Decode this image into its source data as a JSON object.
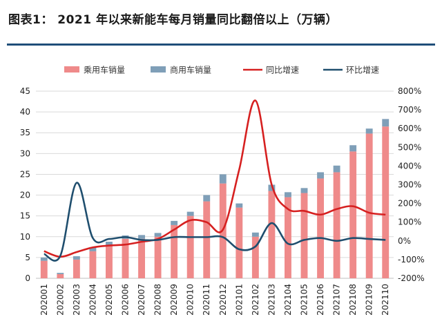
{
  "title": "图表1：  2021 年以来新能车每月销量同比翻倍以上（万辆）",
  "colors": {
    "passenger": "#ef8a8a",
    "commercial": "#7f9fb8",
    "yoy": "#d62020",
    "mom": "#1f4e6e",
    "title_rule": "#1f4e79"
  },
  "chart_data": {
    "type": "bar",
    "categories": [
      "202001",
      "202002",
      "202003",
      "202004",
      "202005",
      "202006",
      "202007",
      "202008",
      "202009",
      "202010",
      "202011",
      "202012",
      "202101",
      "202102",
      "202103",
      "202104",
      "202105",
      "202106",
      "202107",
      "202108",
      "202109",
      "202110"
    ],
    "series": [
      {
        "name": "乘用车销量",
        "type": "bar",
        "axis": "left",
        "values": [
          4.2,
          1.0,
          4.5,
          6.5,
          8.0,
          9.5,
          9.5,
          10.0,
          12.8,
          15.0,
          18.5,
          22.8,
          17.0,
          10.0,
          21.0,
          19.5,
          20.5,
          24.0,
          25.5,
          30.5,
          34.8,
          36.5
        ]
      },
      {
        "name": "商用车销量",
        "type": "bar",
        "axis": "left",
        "values": [
          0.8,
          0.3,
          0.8,
          1.0,
          0.8,
          0.8,
          0.9,
          0.9,
          1.0,
          1.0,
          1.5,
          2.2,
          1.0,
          1.0,
          1.5,
          1.2,
          1.2,
          1.5,
          1.6,
          1.5,
          1.2,
          1.8
        ]
      },
      {
        "name": "同比增速",
        "type": "line",
        "axis": "right",
        "values": [
          -55,
          -85,
          -60,
          -35,
          -25,
          -20,
          -5,
          10,
          60,
          110,
          100,
          60,
          380,
          750,
          300,
          170,
          160,
          140,
          170,
          185,
          150,
          140
        ]
      },
      {
        "name": "环比增速",
        "type": "line",
        "axis": "right",
        "values": [
          -70,
          -80,
          310,
          15,
          10,
          20,
          5,
          5,
          20,
          20,
          20,
          20,
          -45,
          -30,
          95,
          -15,
          5,
          15,
          0,
          15,
          10,
          5
        ]
      }
    ],
    "y_left": {
      "min": 0,
      "max": 45,
      "step": 5,
      "ticks": [
        "0",
        "5",
        "10",
        "15",
        "20",
        "25",
        "30",
        "35",
        "40",
        "45"
      ]
    },
    "y_right": {
      "min": -200,
      "max": 800,
      "step": 100,
      "ticks": [
        "-200%",
        "-100%",
        "0%",
        "100%",
        "200%",
        "300%",
        "400%",
        "500%",
        "600%",
        "700%",
        "800%"
      ]
    },
    "grid": true,
    "legend_position": "top"
  }
}
